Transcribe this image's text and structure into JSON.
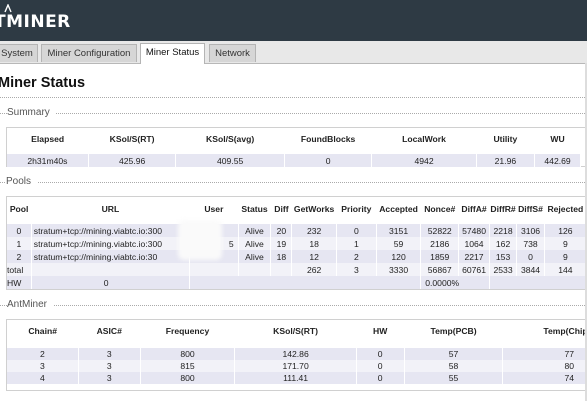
{
  "header": {
    "logo_text": "TMINER"
  },
  "tabs": [
    {
      "label": "System"
    },
    {
      "label": "Miner Configuration"
    },
    {
      "label": "Miner Status",
      "active": true
    },
    {
      "label": "Network"
    }
  ],
  "page": {
    "title": "Miner Status"
  },
  "summary": {
    "section_label": "Summary",
    "headers": [
      "Elapsed",
      "KSol/S(RT)",
      "KSol/S(avg)",
      "FoundBlocks",
      "LocalWork",
      "Utility",
      "WU"
    ],
    "row": [
      "2h31m40s",
      "425.96",
      "409.55",
      "0",
      "4942",
      "21.96",
      "442.69"
    ]
  },
  "pools": {
    "section_label": "Pools",
    "headers": [
      "Pool",
      "URL",
      "User",
      "Status",
      "Diff",
      "GetWorks",
      "Priority",
      "Accepted",
      "Nonce#",
      "DiffA#",
      "DiffR#",
      "DiffS#",
      "Rejected"
    ],
    "rows": [
      [
        "0",
        "stratum+tcp://mining.viabtc.io:300",
        "",
        "Alive",
        "20",
        "232",
        "0",
        "3151",
        "52822",
        "57480",
        "2218",
        "3106",
        "126"
      ],
      [
        "1",
        "stratum+tcp://mining.viabtc.io:300",
        "5",
        "Alive",
        "19",
        "18",
        "1",
        "59",
        "2186",
        "1064",
        "162",
        "738",
        "9"
      ],
      [
        "2",
        "stratum+tcp://mining.viabtc.io:30",
        "",
        "Alive",
        "18",
        "12",
        "2",
        "120",
        "1859",
        "2217",
        "153",
        "0",
        "9"
      ],
      [
        "total",
        "",
        "",
        "",
        "",
        "262",
        "3",
        "3330",
        "56867",
        "60761",
        "2533",
        "3844",
        "144"
      ]
    ],
    "hw_row": {
      "label": "HW",
      "value": "0",
      "percent": "0.0000%"
    }
  },
  "antminer": {
    "section_label": "AntMiner",
    "headers": [
      "Chain#",
      "ASIC#",
      "Frequency",
      "KSol/S(RT)",
      "HW",
      "Temp(PCB)",
      "Temp(Chip)"
    ],
    "rows": [
      [
        "2",
        "3",
        "800",
        "142.86",
        "0",
        "57",
        "77"
      ],
      [
        "3",
        "3",
        "815",
        "171.70",
        "0",
        "58",
        "80"
      ],
      [
        "4",
        "3",
        "800",
        "111.41",
        "0",
        "55",
        "74"
      ]
    ]
  },
  "colors": {
    "topbar": "#2e3a44",
    "row_shade": "#e6e6f2"
  }
}
